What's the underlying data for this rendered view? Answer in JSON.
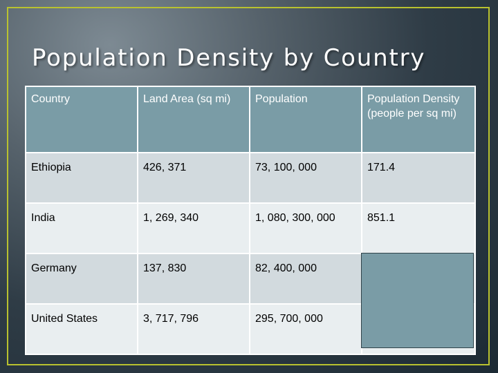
{
  "title": "Population Density by Country",
  "colors": {
    "frame": "#b9c22f",
    "header_bg": "#7a9ca6",
    "row_odd": "#d2dade",
    "row_even": "#e9eef0",
    "overlay": "#7a9ca6"
  },
  "table": {
    "headers": [
      "Country",
      "Land Area (sq mi)",
      "Population",
      "Population Density (people per sq mi)"
    ],
    "rows": [
      [
        "Ethiopia",
        "426, 371",
        "73, 100, 000",
        "171.4"
      ],
      [
        "India",
        "1, 269, 340",
        "1, 080, 300, 000",
        "851.1"
      ],
      [
        "Germany",
        "137, 830",
        "82, 400, 000",
        ""
      ],
      [
        "United States",
        "3, 717, 796",
        "295, 700, 000",
        ""
      ]
    ]
  }
}
